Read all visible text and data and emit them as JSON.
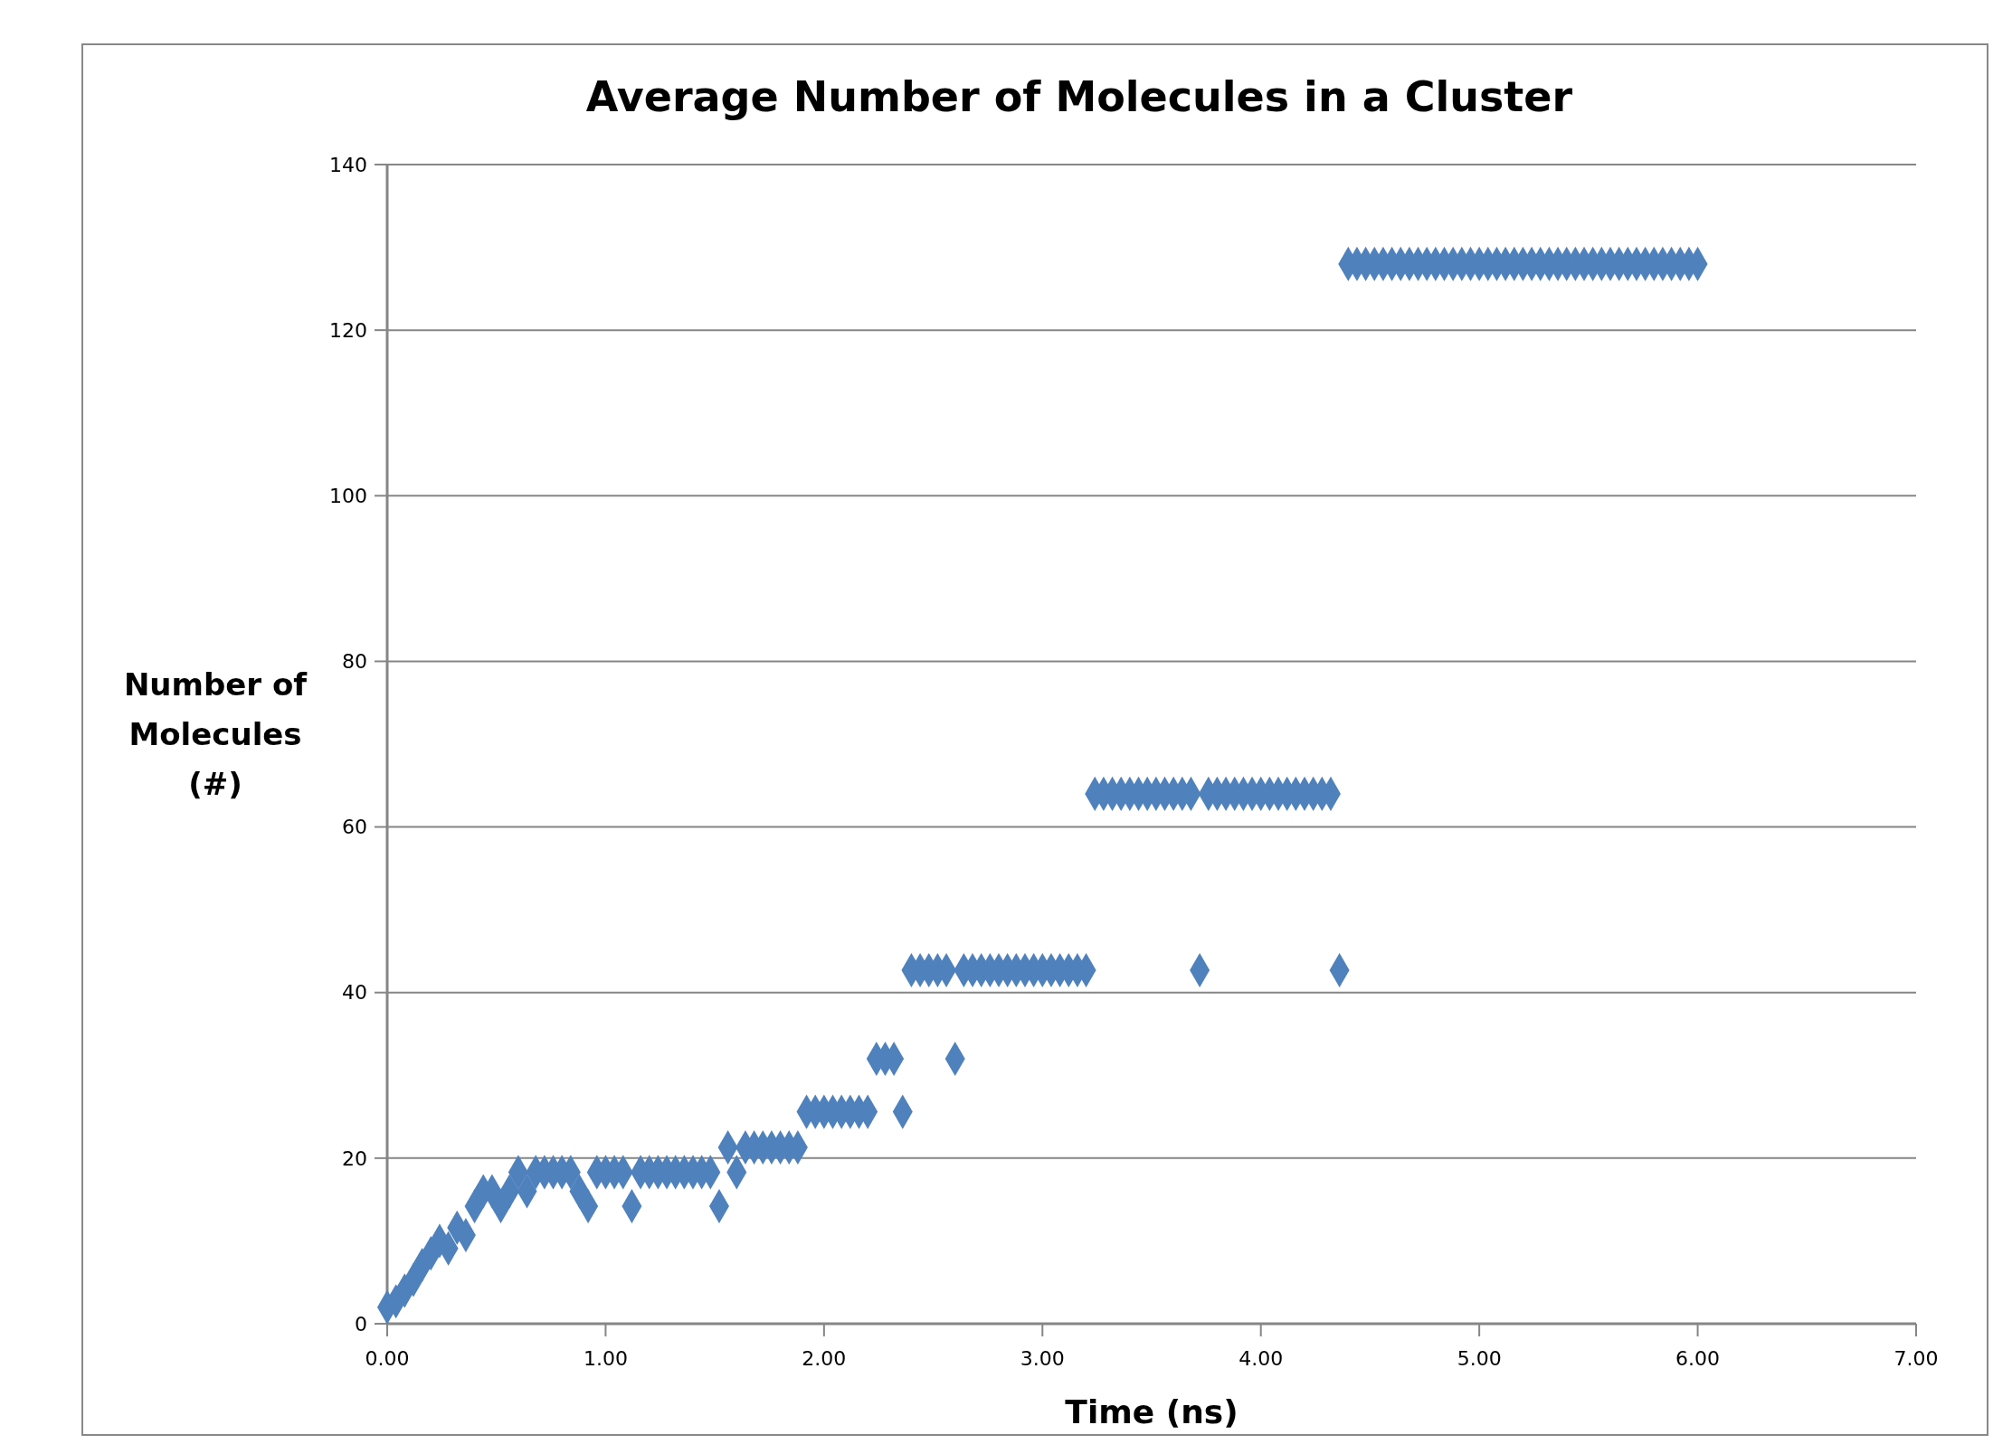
{
  "chart_data": {
    "type": "scatter",
    "title": "Average Number of Molecules in a Cluster",
    "xlabel": "Time (ns)",
    "ylabel": "Number of Molecules (#)",
    "xlim": [
      0,
      7
    ],
    "xticks": [
      {
        "value": 0,
        "label": "0.00"
      },
      {
        "value": 1,
        "label": "1.00"
      },
      {
        "value": 2,
        "label": "2.00"
      },
      {
        "value": 3,
        "label": "3.00"
      },
      {
        "value": 4,
        "label": "4.00"
      },
      {
        "value": 5,
        "label": "5.00"
      },
      {
        "value": 6,
        "label": "6.00"
      },
      {
        "value": 7,
        "label": "7.00"
      }
    ],
    "ylim": [
      0,
      140
    ],
    "yticks": [
      0,
      20,
      40,
      60,
      80,
      100,
      120,
      140
    ],
    "grid": "y",
    "marker": "diamond",
    "series": [
      {
        "color": "#4f81bd",
        "x": [
          0,
          0.04,
          0.08,
          0.12,
          0.16,
          0.2,
          0.24,
          0.28,
          0.32,
          0.36,
          0.4,
          0.44,
          0.48,
          0.52,
          0.56,
          0.6,
          0.64,
          0.68,
          0.72,
          0.76,
          0.8,
          0.84,
          0.88,
          0.92,
          0.96,
          1,
          1.04,
          1.08,
          1.12,
          1.16,
          1.2,
          1.24,
          1.28,
          1.32,
          1.36,
          1.4,
          1.44,
          1.48,
          1.52,
          1.56,
          1.6,
          1.64,
          1.68,
          1.72,
          1.76,
          1.8,
          1.84,
          1.88,
          1.92,
          1.96,
          2,
          2.04,
          2.08,
          2.12,
          2.16,
          2.2,
          2.24,
          2.28,
          2.32,
          2.36,
          2.4,
          2.44,
          2.48,
          2.52,
          2.56,
          2.6,
          2.64,
          2.68,
          2.72,
          2.76,
          2.8,
          2.84,
          2.88,
          2.92,
          2.96,
          3,
          3.04,
          3.08,
          3.12,
          3.16,
          3.2,
          3.24,
          3.28,
          3.32,
          3.36,
          3.4,
          3.44,
          3.48,
          3.52,
          3.56,
          3.6,
          3.64,
          3.68,
          3.72,
          3.76,
          3.8,
          3.84,
          3.88,
          3.92,
          3.96,
          4,
          4.04,
          4.08,
          4.12,
          4.16,
          4.2,
          4.24,
          4.28,
          4.32,
          4.36,
          4.4,
          4.44,
          4.48,
          4.52,
          4.56,
          4.6,
          4.64,
          4.68,
          4.72,
          4.76,
          4.8,
          4.84,
          4.88,
          4.92,
          4.96,
          5,
          5.04,
          5.08,
          5.12,
          5.16,
          5.2,
          5.24,
          5.28,
          5.32,
          5.36,
          5.4,
          5.44,
          5.48,
          5.52,
          5.56,
          5.6,
          5.64,
          5.68,
          5.72,
          5.76,
          5.8,
          5.84,
          5.88,
          5.92,
          5.96,
          6
        ],
        "values": [
          2,
          2.7,
          4,
          5.3,
          7.1,
          8.5,
          10,
          9.1,
          11.6,
          10.7,
          14.2,
          16,
          16,
          14.2,
          16,
          18.3,
          16,
          18.3,
          18.3,
          18.3,
          18.3,
          18.3,
          16,
          14.2,
          18.3,
          18.3,
          18.3,
          18.3,
          14.2,
          18.3,
          18.3,
          18.3,
          18.3,
          18.3,
          18.3,
          18.3,
          18.3,
          18.3,
          14.2,
          21.3,
          18.3,
          21.3,
          21.3,
          21.3,
          21.3,
          21.3,
          21.3,
          21.3,
          25.6,
          25.6,
          25.6,
          25.6,
          25.6,
          25.6,
          25.6,
          25.6,
          32,
          32,
          32,
          25.6,
          42.7,
          42.7,
          42.7,
          42.7,
          42.7,
          32,
          42.7,
          42.7,
          42.7,
          42.7,
          42.7,
          42.7,
          42.7,
          42.7,
          42.7,
          42.7,
          42.7,
          42.7,
          42.7,
          42.7,
          42.7,
          64,
          64,
          64,
          64,
          64,
          64,
          64,
          64,
          64,
          64,
          64,
          64,
          42.7,
          64,
          64,
          64,
          64,
          64,
          64,
          64,
          64,
          64,
          64,
          64,
          64,
          64,
          64,
          64,
          42.7,
          128,
          128,
          128,
          128,
          128,
          128,
          128,
          128,
          128,
          128,
          128,
          128,
          128,
          128,
          128,
          128,
          128,
          128,
          128,
          128,
          128,
          128,
          128,
          128,
          128,
          128,
          128,
          128,
          128,
          128,
          128,
          128,
          128,
          128,
          128,
          128,
          128,
          128,
          128,
          128,
          128
        ]
      }
    ]
  }
}
